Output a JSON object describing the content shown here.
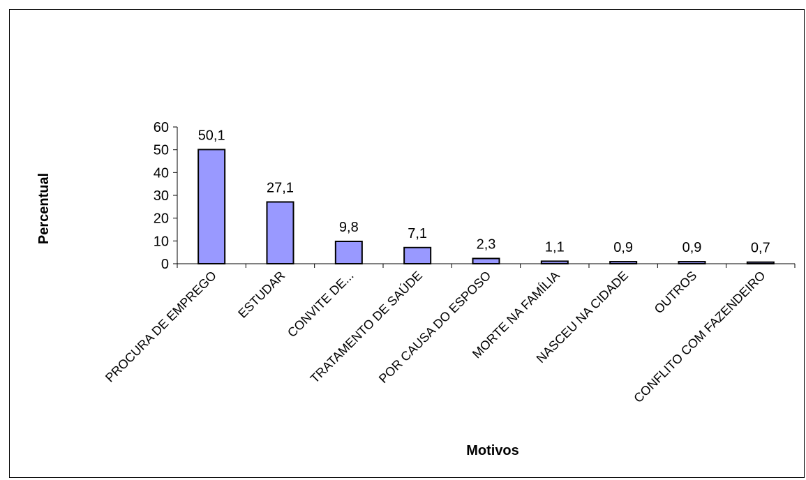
{
  "chart_data": {
    "type": "bar",
    "categories": [
      "PROCURA DE EMPREGO",
      "ESTUDAR",
      "CONVITE DE...",
      "TRATAMENTO DE SAÚDE",
      "POR CAUSA DO ESPOSO",
      "MORTE NA FAMÍLIA",
      "NASCEU NA CIDADE",
      "OUTROS",
      "CONFLITO COM FAZENDEIRO"
    ],
    "values": [
      50.1,
      27.1,
      9.8,
      7.1,
      2.3,
      1.1,
      0.9,
      0.9,
      0.7
    ],
    "data_labels": [
      "50,1",
      "27,1",
      "9,8",
      "7,1",
      "2,3",
      "1,1",
      "0,9",
      "0,9",
      "0,7"
    ],
    "xlabel": "Motivos",
    "ylabel": "Percentual",
    "ylim": [
      0,
      60
    ],
    "yticks": [
      0,
      10,
      20,
      30,
      40,
      50,
      60
    ],
    "grid": false,
    "legend": "none",
    "colors": {
      "bar_fill": "#9999ff",
      "bar_stroke": "#000000",
      "axis": "#000000"
    }
  }
}
